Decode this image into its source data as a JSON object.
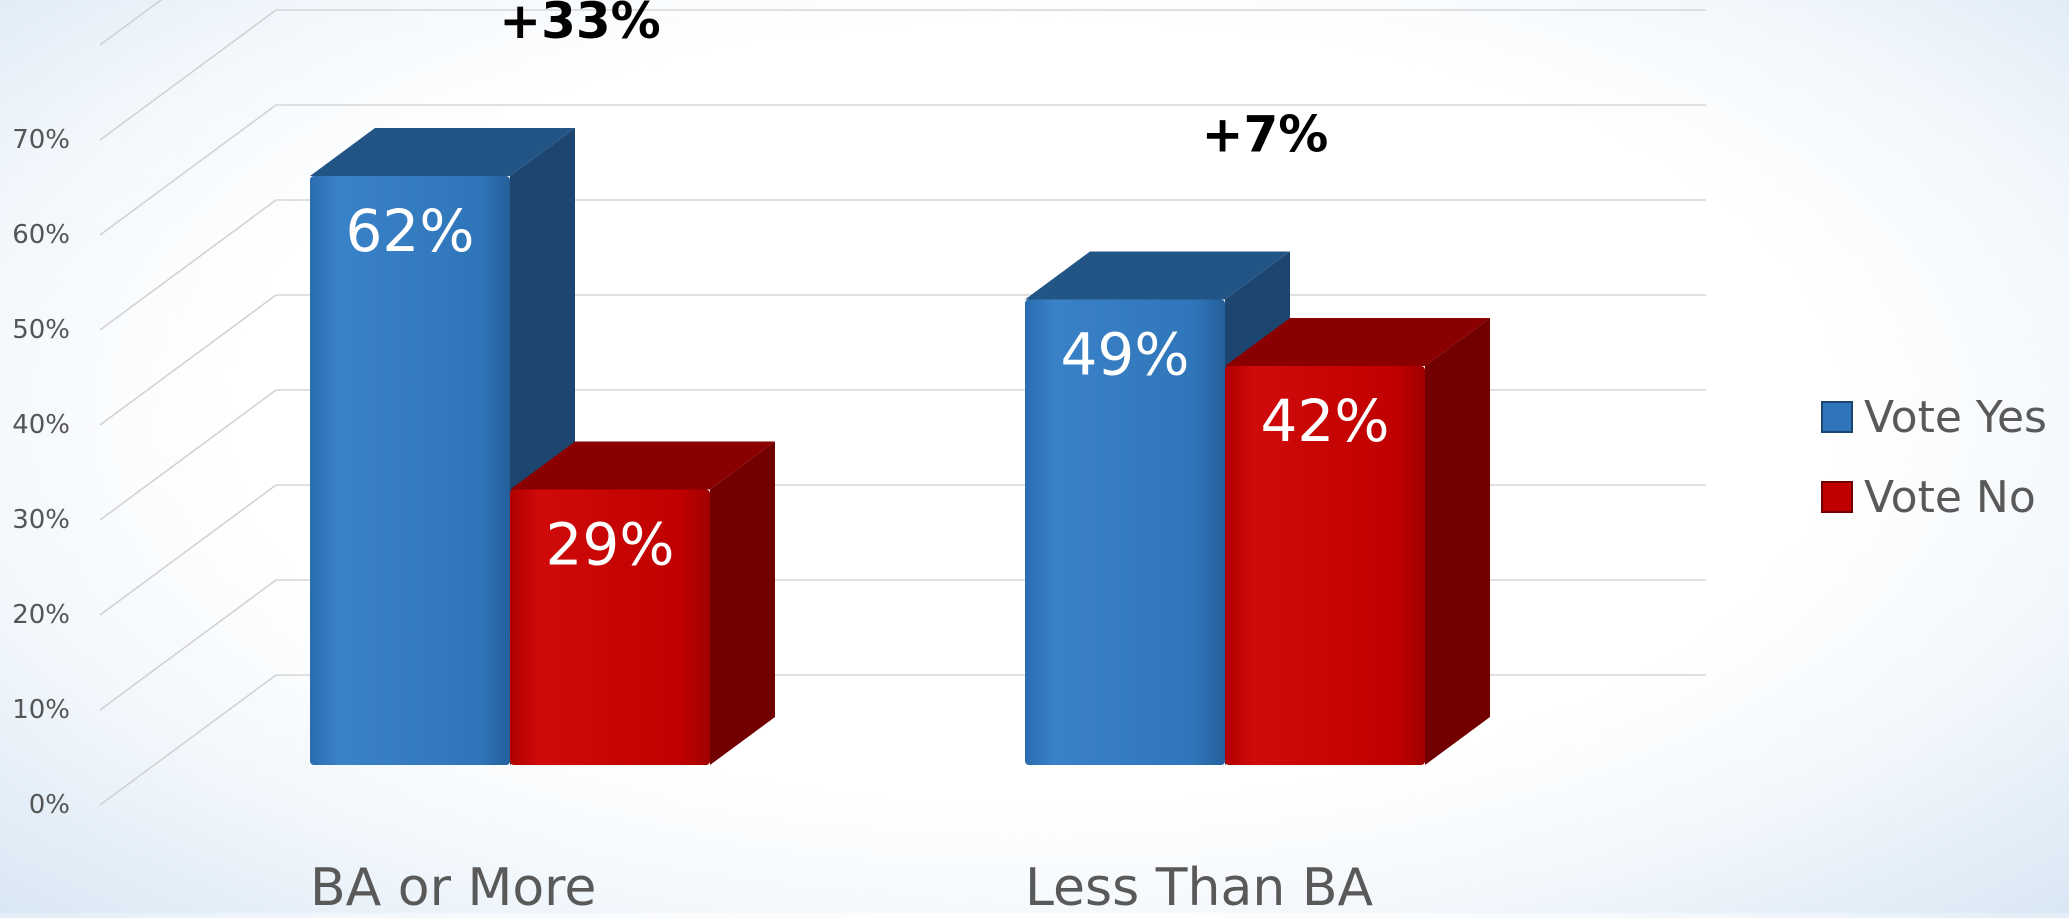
{
  "chart_data": {
    "type": "bar",
    "title": "",
    "xlabel": "",
    "ylabel": "",
    "ylim": [
      0,
      80
    ],
    "yticks": [
      0,
      10,
      20,
      30,
      40,
      50,
      60,
      70
    ],
    "ytick_labels": [
      "0%",
      "10%",
      "20%",
      "30%",
      "40%",
      "50%",
      "60%",
      "70%"
    ],
    "categories": [
      "BA or More",
      "Less Than BA"
    ],
    "series": [
      {
        "name": "Vote Yes",
        "values": [
          62,
          49
        ],
        "labels": [
          "62%",
          "49%"
        ],
        "color": "#2f75b9"
      },
      {
        "name": "Vote No",
        "values": [
          29,
          42
        ],
        "labels": [
          "29%",
          "42%"
        ],
        "color": "#c00000"
      }
    ],
    "annotations": [
      "+33%",
      "+7%"
    ],
    "legend": "right",
    "grid": true,
    "three_d": true
  }
}
